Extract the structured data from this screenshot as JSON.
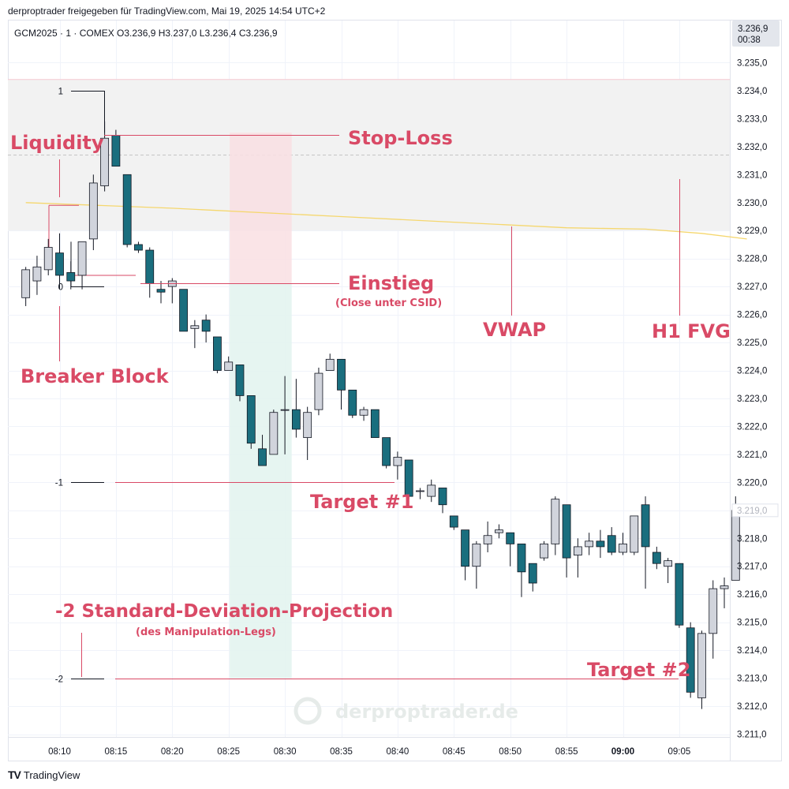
{
  "header": {
    "publisher": "derproptrader freigegeben für TradingView.com, Mai 19, 2025 14:54 UTC+2",
    "ohlc": "GCM2025 · 1 · COMEX  O3.236,9  H3.237,0  L3.236,4  C3.236,9"
  },
  "price_tag": {
    "price": "3.236,9",
    "countdown": "00:38"
  },
  "footer": {
    "brand": "TradingView"
  },
  "watermark": "derproptrader.de",
  "colors": {
    "bull": "#d1d4dc",
    "bear": "#1a6e7e",
    "annotation": "#d94a66",
    "vwap": "#f5d76e",
    "sl_zone": "#f9dfe3",
    "tp_zone": "#e3f4ef",
    "fvg_zone": "#f2f2f2"
  },
  "fib_labels": {
    "one": "1",
    "zero": "0",
    "minus_one": "-1",
    "minus_two": "-2"
  },
  "annotations": {
    "liquidity": "Liquidity",
    "stop_loss": "Stop-Loss",
    "einstieg": "Einstieg",
    "einstieg_sub": "(Close unter CSID)",
    "breaker_block": "Breaker Block",
    "vwap": "VWAP",
    "h1_fvg": "H1 FVG",
    "target1": "Target #1",
    "target2": "Target #2",
    "projection": "-2 Standard-Deviation-Projection",
    "projection_sub": "(des Manipulation-Legs)"
  },
  "chart_data": {
    "type": "candlestick",
    "symbol": "GCM2025",
    "interval": "1",
    "exchange": "COMEX",
    "price_axis": {
      "ylim": [
        3210.7,
        3236.7
      ],
      "ticks": [
        3211,
        3212,
        3213,
        3214,
        3215,
        3216,
        3217,
        3218,
        3219,
        3220,
        3221,
        3222,
        3223,
        3224,
        3225,
        3226,
        3227,
        3228,
        3229,
        3230,
        3231,
        3232,
        3233,
        3234,
        3235
      ],
      "tick_labels": [
        "3.211,0",
        "3.212,0",
        "3.213,0",
        "3.214,0",
        "3.215,0",
        "3.216,0",
        "3.217,0",
        "3.218,0",
        "3.219,0",
        "3.220,0",
        "3.221,0",
        "3.222,0",
        "3.223,0",
        "3.224,0",
        "3.225,0",
        "3.226,0",
        "3.227,0",
        "3.228,0",
        "3.229,0",
        "3.230,0",
        "3.231,0",
        "3.232,0",
        "3.233,0",
        "3.234,0",
        "3.235,0"
      ],
      "marker_label": "3.219,0"
    },
    "time_axis": {
      "labels": [
        "08:10",
        "08:15",
        "08:20",
        "08:25",
        "08:30",
        "08:35",
        "08:40",
        "08:45",
        "08:50",
        "08:55",
        "09:00",
        "09:05"
      ],
      "label_minutes": [
        10,
        15,
        20,
        25,
        30,
        35,
        40,
        45,
        50,
        55,
        60,
        65
      ],
      "bold_label": "09:00"
    },
    "candles": [
      {
        "t": 7,
        "o": 3226.6,
        "h": 3227.7,
        "l": 3226.3,
        "c": 3227.6
      },
      {
        "t": 8,
        "o": 3227.2,
        "h": 3228.1,
        "l": 3226.7,
        "c": 3227.7
      },
      {
        "t": 9,
        "o": 3227.6,
        "h": 3228.7,
        "l": 3227.4,
        "c": 3228.4
      },
      {
        "t": 10,
        "o": 3228.2,
        "h": 3228.9,
        "l": 3226.9,
        "c": 3227.4
      },
      {
        "t": 11,
        "o": 3227.5,
        "h": 3227.9,
        "l": 3226.9,
        "c": 3227.2
      },
      {
        "t": 12,
        "o": 3227.4,
        "h": 3228.6,
        "l": 3226.9,
        "c": 3228.6
      },
      {
        "t": 13,
        "o": 3228.7,
        "h": 3231.0,
        "l": 3228.3,
        "c": 3230.7
      },
      {
        "t": 14,
        "o": 3230.6,
        "h": 3232.9,
        "l": 3230.4,
        "c": 3232.3
      },
      {
        "t": 15,
        "o": 3232.4,
        "h": 3232.6,
        "l": 3231.3,
        "c": 3231.3
      },
      {
        "t": 16,
        "o": 3231.0,
        "h": 3231.0,
        "l": 3228.4,
        "c": 3228.5
      },
      {
        "t": 17,
        "o": 3228.5,
        "h": 3228.6,
        "l": 3228.2,
        "c": 3228.3
      },
      {
        "t": 18,
        "o": 3228.3,
        "h": 3228.4,
        "l": 3226.6,
        "c": 3227.1
      },
      {
        "t": 19,
        "o": 3226.9,
        "h": 3227.2,
        "l": 3226.4,
        "c": 3226.8
      },
      {
        "t": 20,
        "o": 3227.0,
        "h": 3227.3,
        "l": 3226.4,
        "c": 3227.2
      },
      {
        "t": 21,
        "o": 3226.9,
        "h": 3226.9,
        "l": 3225.4,
        "c": 3225.4
      },
      {
        "t": 22,
        "o": 3225.5,
        "h": 3225.8,
        "l": 3224.8,
        "c": 3225.6
      },
      {
        "t": 23,
        "o": 3225.8,
        "h": 3226.0,
        "l": 3225.0,
        "c": 3225.4
      },
      {
        "t": 24,
        "o": 3225.2,
        "h": 3225.2,
        "l": 3223.9,
        "c": 3224.0
      },
      {
        "t": 25,
        "o": 3224.0,
        "h": 3224.5,
        "l": 3224.0,
        "c": 3224.3
      },
      {
        "t": 26,
        "o": 3224.2,
        "h": 3224.2,
        "l": 3222.9,
        "c": 3223.1
      },
      {
        "t": 27,
        "o": 3223.1,
        "h": 3223.1,
        "l": 3221.2,
        "c": 3221.4
      },
      {
        "t": 28,
        "o": 3221.2,
        "h": 3221.7,
        "l": 3220.6,
        "c": 3220.6
      },
      {
        "t": 29,
        "o": 3221.0,
        "h": 3222.6,
        "l": 3221.0,
        "c": 3222.5
      },
      {
        "t": 30,
        "o": 3222.6,
        "h": 3223.8,
        "l": 3221.0,
        "c": 3222.6
      },
      {
        "t": 31,
        "o": 3222.6,
        "h": 3223.7,
        "l": 3221.6,
        "c": 3221.9
      },
      {
        "t": 32,
        "o": 3221.6,
        "h": 3222.7,
        "l": 3220.8,
        "c": 3222.5
      },
      {
        "t": 33,
        "o": 3222.6,
        "h": 3224.1,
        "l": 3222.4,
        "c": 3223.9
      },
      {
        "t": 34,
        "o": 3224.0,
        "h": 3224.6,
        "l": 3224.0,
        "c": 3224.4
      },
      {
        "t": 35,
        "o": 3224.4,
        "h": 3224.4,
        "l": 3222.6,
        "c": 3223.3
      },
      {
        "t": 36,
        "o": 3223.3,
        "h": 3223.3,
        "l": 3222.3,
        "c": 3222.4
      },
      {
        "t": 37,
        "o": 3222.4,
        "h": 3222.7,
        "l": 3222.2,
        "c": 3222.6
      },
      {
        "t": 38,
        "o": 3222.6,
        "h": 3222.6,
        "l": 3221.6,
        "c": 3221.6
      },
      {
        "t": 39,
        "o": 3221.6,
        "h": 3221.6,
        "l": 3220.5,
        "c": 3220.6
      },
      {
        "t": 40,
        "o": 3220.6,
        "h": 3221.1,
        "l": 3220.1,
        "c": 3220.9
      },
      {
        "t": 41,
        "o": 3220.8,
        "h": 3220.8,
        "l": 3219.4,
        "c": 3219.5
      },
      {
        "t": 42,
        "o": 3219.7,
        "h": 3219.8,
        "l": 3219.4,
        "c": 3219.7
      },
      {
        "t": 43,
        "o": 3219.5,
        "h": 3220.1,
        "l": 3219.3,
        "c": 3219.9
      },
      {
        "t": 44,
        "o": 3219.8,
        "h": 3219.8,
        "l": 3218.9,
        "c": 3219.2
      },
      {
        "t": 45,
        "o": 3218.8,
        "h": 3218.8,
        "l": 3218.3,
        "c": 3218.4
      },
      {
        "t": 46,
        "o": 3218.3,
        "h": 3218.3,
        "l": 3216.5,
        "c": 3217.0
      },
      {
        "t": 47,
        "o": 3217.0,
        "h": 3217.9,
        "l": 3216.2,
        "c": 3217.8
      },
      {
        "t": 48,
        "o": 3217.8,
        "h": 3218.6,
        "l": 3217.5,
        "c": 3218.1
      },
      {
        "t": 49,
        "o": 3218.2,
        "h": 3218.5,
        "l": 3218.0,
        "c": 3218.3
      },
      {
        "t": 50,
        "o": 3218.2,
        "h": 3218.2,
        "l": 3217.0,
        "c": 3217.8
      },
      {
        "t": 51,
        "o": 3217.8,
        "h": 3217.8,
        "l": 3215.9,
        "c": 3216.8
      },
      {
        "t": 52,
        "o": 3217.1,
        "h": 3217.1,
        "l": 3216.1,
        "c": 3216.4
      },
      {
        "t": 53,
        "o": 3217.3,
        "h": 3217.9,
        "l": 3217.2,
        "c": 3217.8
      },
      {
        "t": 54,
        "o": 3217.8,
        "h": 3219.5,
        "l": 3217.4,
        "c": 3219.4
      },
      {
        "t": 55,
        "o": 3219.2,
        "h": 3219.2,
        "l": 3216.6,
        "c": 3217.3
      },
      {
        "t": 56,
        "o": 3217.4,
        "h": 3218.0,
        "l": 3216.6,
        "c": 3217.7
      },
      {
        "t": 57,
        "o": 3217.7,
        "h": 3218.2,
        "l": 3217.4,
        "c": 3217.9
      },
      {
        "t": 58,
        "o": 3217.9,
        "h": 3218.3,
        "l": 3217.3,
        "c": 3217.7
      },
      {
        "t": 59,
        "o": 3218.1,
        "h": 3218.4,
        "l": 3217.4,
        "c": 3217.5
      },
      {
        "t": 60,
        "o": 3217.5,
        "h": 3218.2,
        "l": 3217.4,
        "c": 3217.8
      },
      {
        "t": 61,
        "o": 3217.5,
        "h": 3218.7,
        "l": 3217.4,
        "c": 3218.8
      },
      {
        "t": 62,
        "o": 3219.2,
        "h": 3219.5,
        "l": 3216.2,
        "c": 3217.7
      },
      {
        "t": 63,
        "o": 3217.5,
        "h": 3217.7,
        "l": 3216.9,
        "c": 3217.1
      },
      {
        "t": 64,
        "o": 3217.0,
        "h": 3217.3,
        "l": 3216.4,
        "c": 3217.2
      },
      {
        "t": 65,
        "o": 3217.1,
        "h": 3217.1,
        "l": 3214.8,
        "c": 3214.9
      },
      {
        "t": 66,
        "o": 3214.8,
        "h": 3215.0,
        "l": 3212.3,
        "c": 3212.5
      },
      {
        "t": 67,
        "o": 3212.3,
        "h": 3214.7,
        "l": 3211.9,
        "c": 3214.6
      },
      {
        "t": 68,
        "o": 3214.6,
        "h": 3216.5,
        "l": 3213.7,
        "c": 3216.2
      },
      {
        "t": 69,
        "o": 3216.2,
        "h": 3216.6,
        "l": 3215.5,
        "c": 3216.3
      },
      {
        "t": 70,
        "o": 3216.5,
        "h": 3219.5,
        "l": 3216.5,
        "c": 3219.0
      }
    ],
    "vwap": [
      [
        7,
        3230.0
      ],
      [
        20,
        3229.8
      ],
      [
        35,
        3229.5
      ],
      [
        45,
        3229.3
      ],
      [
        55,
        3229.1
      ],
      [
        62,
        3229.05
      ],
      [
        67,
        3228.9
      ],
      [
        71,
        3228.7
      ]
    ],
    "fib_levels": [
      {
        "label": "1",
        "price": 3234.0
      },
      {
        "label": "0",
        "price": 3227.0
      },
      {
        "label": "-1",
        "price": 3220.0
      },
      {
        "label": "-2",
        "price": 3213.0
      }
    ],
    "zones": {
      "h1_fvg": {
        "top": 3234.4,
        "bottom": 3229.0,
        "midline": 3231.7
      },
      "stop_loss": {
        "t_start": 25.1,
        "t_end": 30.6,
        "top": 3232.5,
        "bottom": 3227.1
      },
      "take_profit": {
        "t_start": 25.1,
        "t_end": 30.6,
        "top": 3227.1,
        "bottom": 3213.0
      }
    },
    "grid": true
  }
}
